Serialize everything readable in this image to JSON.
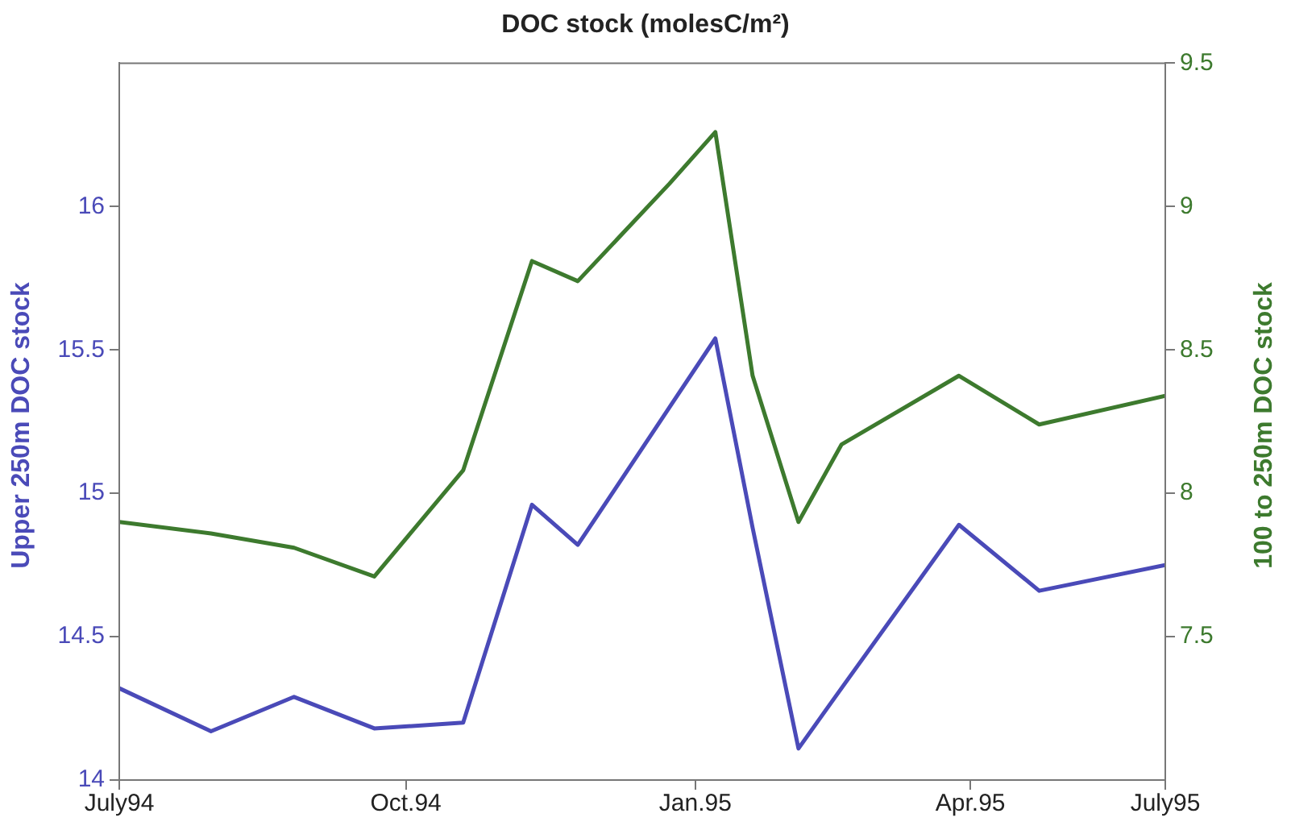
{
  "chart_data": {
    "type": "line",
    "title": "DOC stock (molesC/m²)",
    "ylabel": "Upper 250m DOC stock",
    "y2label": "100 to 250m DOC stock",
    "x": [
      "1994-07-01",
      "1994-08-02",
      "1994-08-31",
      "1994-09-28",
      "1994-10-29",
      "1994-11-22",
      "1994-12-08",
      "1995-01-09",
      "1995-01-25",
      "1995-02-07",
      "1995-02-23",
      "1995-03-10",
      "1995-04-20",
      "1995-05-18",
      "1995-07-01"
    ],
    "series": [
      {
        "color": "#4a4ab8",
        "values": [
          14.32,
          14.17,
          14.29,
          14.18,
          14.2,
          14.96,
          14.82,
          15.3,
          15.54,
          14.88,
          14.11,
          14.32,
          14.89,
          14.66,
          14.75
        ]
      },
      {
        "color": "#3d7a2e",
        "axis": "y2",
        "values": [
          7.9,
          7.86,
          7.81,
          7.71,
          8.08,
          8.81,
          8.74,
          9.08,
          9.26,
          8.41,
          7.9,
          8.17,
          8.41,
          8.24,
          8.34
        ]
      }
    ],
    "xlim": [
      "1994-07-01",
      "1995-07-01"
    ],
    "xticks": [
      {
        "value": "1994-07-01",
        "label": "July94"
      },
      {
        "value": "1994-10-09",
        "label": "Oct.94"
      },
      {
        "value": "1995-01-18",
        "label": "Jan.95"
      },
      {
        "value": "1995-04-24",
        "label": "Apr.95"
      },
      {
        "value": "1995-07-01",
        "label": "July95"
      }
    ],
    "ylim": [
      14,
      16.5
    ],
    "yticks": [
      14,
      14.5,
      15,
      15.5,
      16
    ],
    "y2lim": [
      7,
      9.5
    ],
    "y2ticks": [
      7.5,
      8,
      8.5,
      9,
      9.5
    ],
    "grid": false,
    "legend": false,
    "marker": "none",
    "line_style": "solid"
  }
}
